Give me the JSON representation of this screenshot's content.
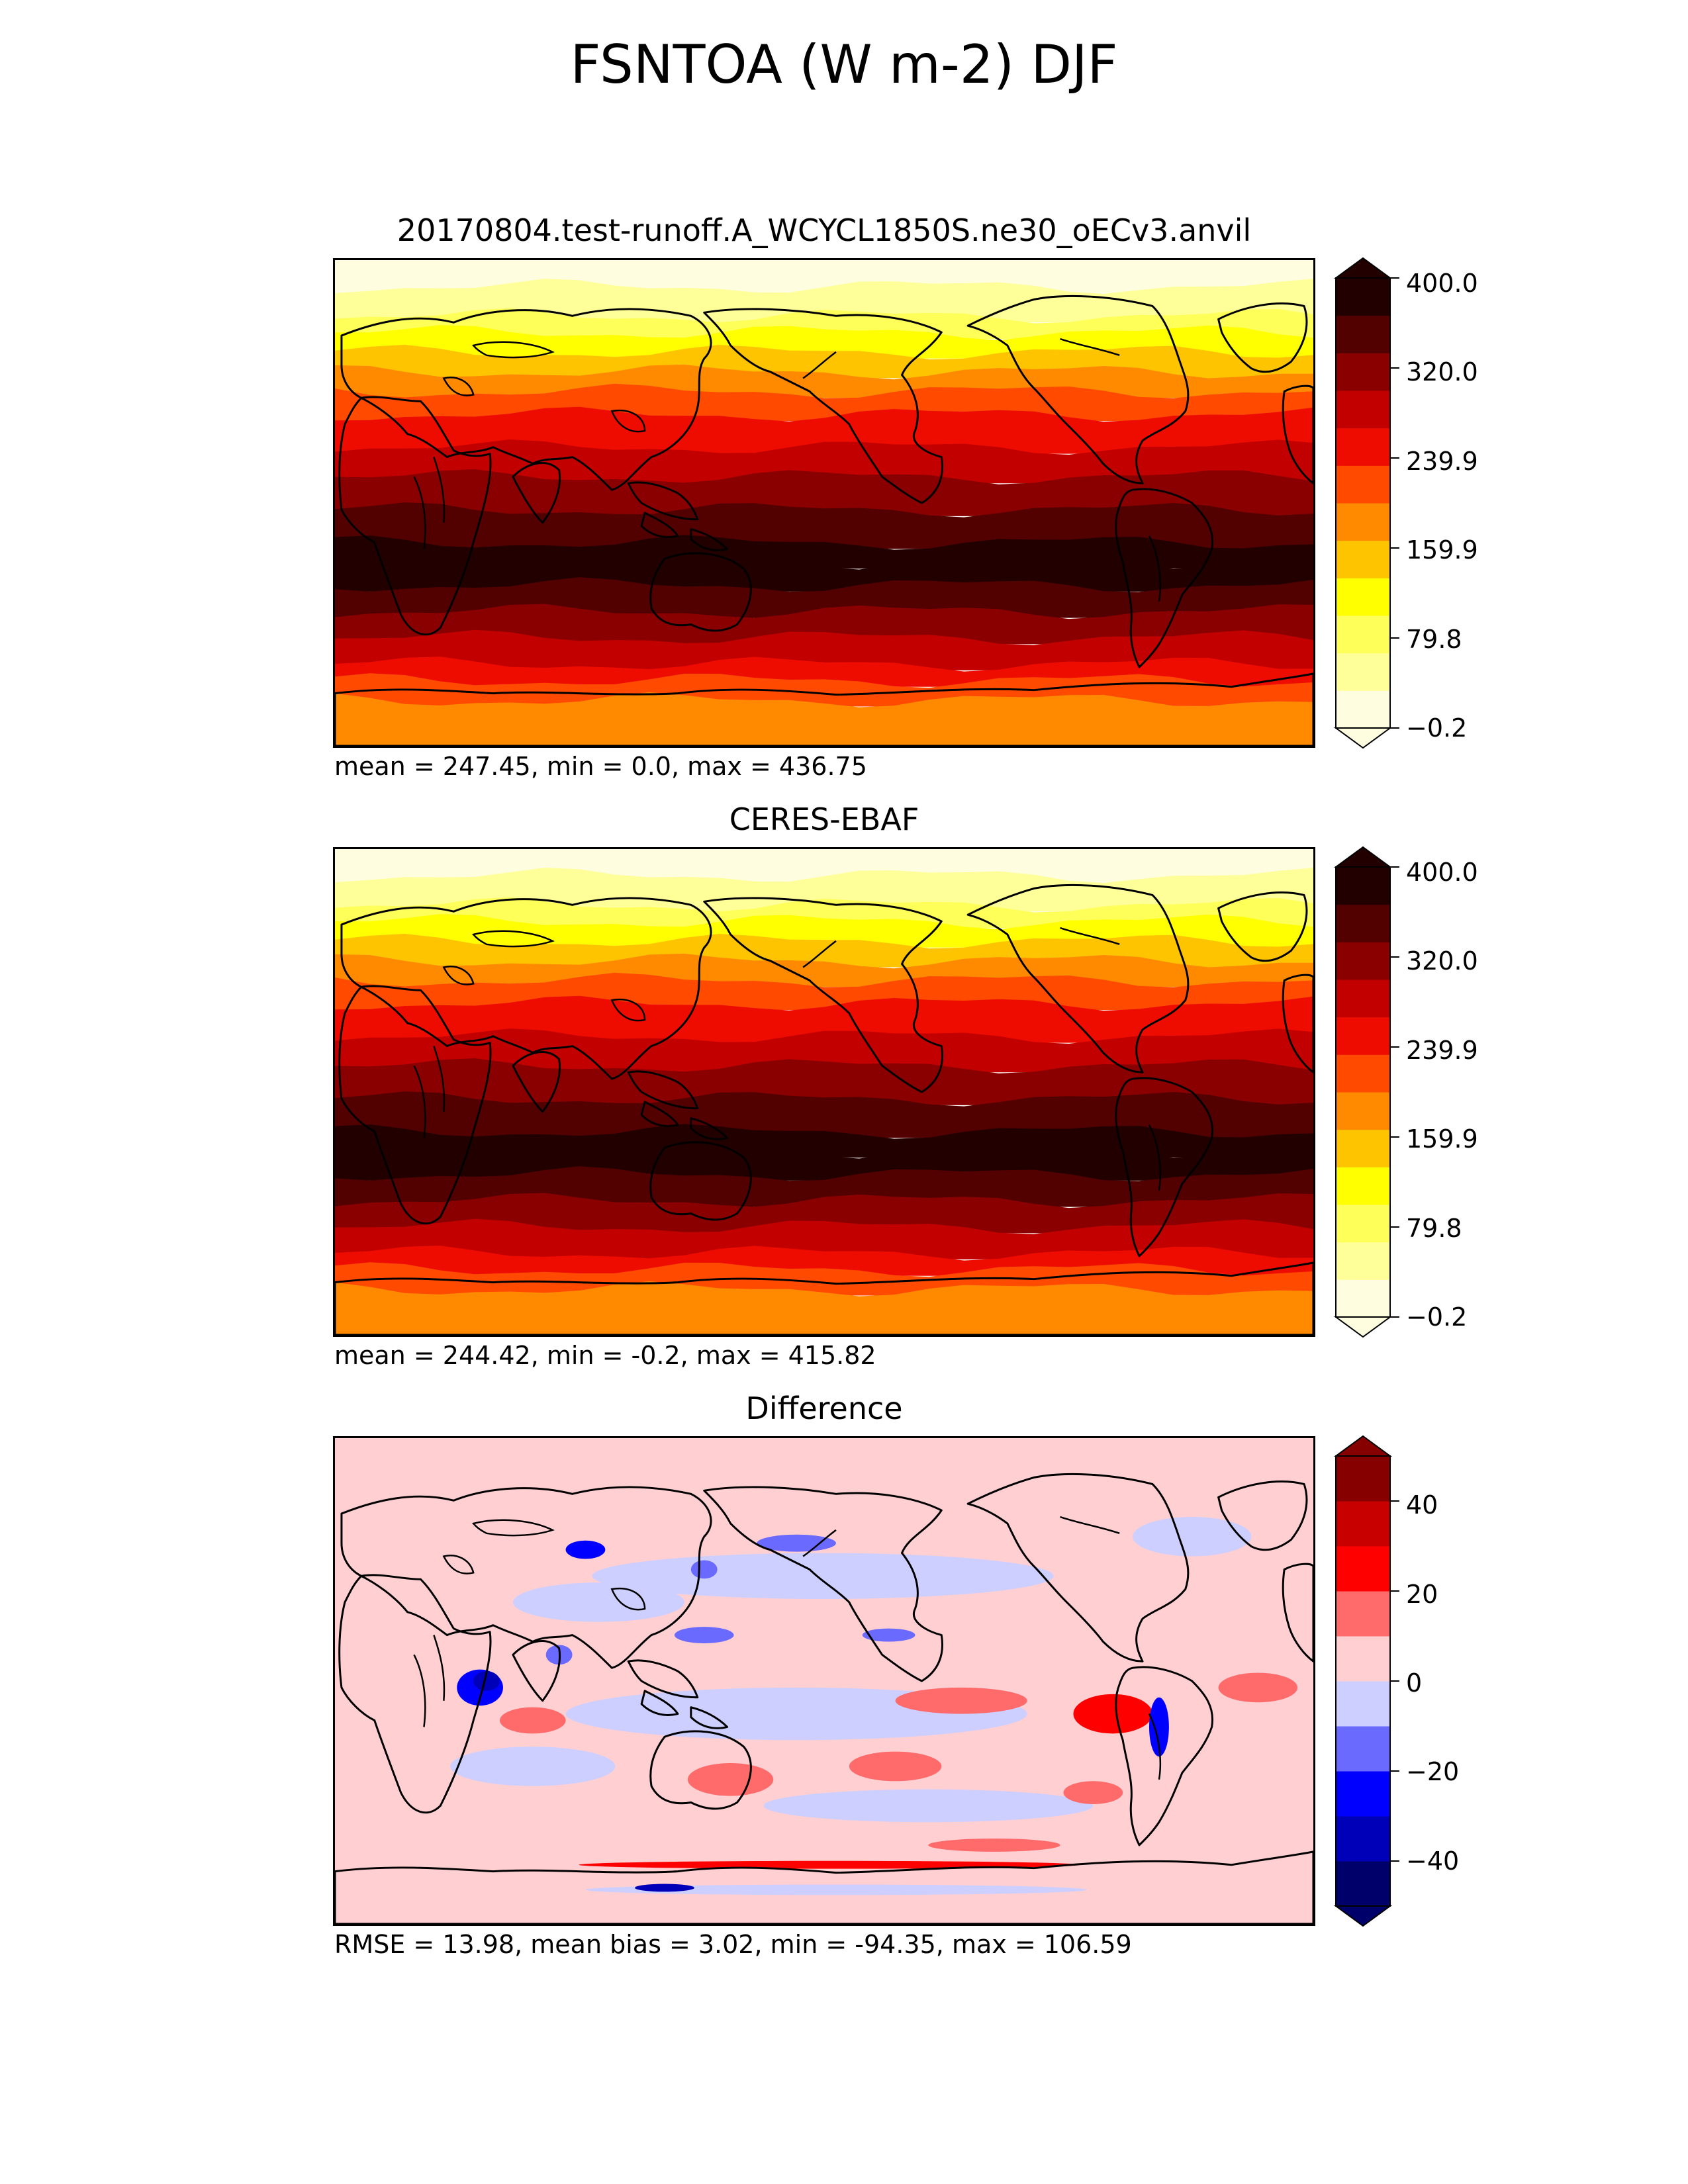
{
  "figure_title": "FSNTOA (W m-2) DJF",
  "panels": [
    {
      "title": "20170804.test-runoff.A_WCYCL1850S.ne30_oECv3.anvil",
      "stats": "mean = 247.45, min = 0.0, max = 436.75",
      "colormap": "hot_r",
      "colors": [
        "#fffde0",
        "#ffff9a",
        "#ffff5a",
        "#ffff00",
        "#ffc400",
        "#ff8a00",
        "#ff4a00",
        "#ee0c00",
        "#c20000",
        "#8a0000",
        "#520000",
        "#220000"
      ],
      "colorbar_ticks": [
        "400.0",
        "320.0",
        "239.9",
        "159.9",
        "79.8",
        "−0.2"
      ],
      "range": [
        -0.2,
        400.0
      ]
    },
    {
      "title": "CERES-EBAF",
      "stats": "mean = 244.42, min = -0.2, max = 415.82",
      "colormap": "hot_r",
      "colors": [
        "#fffde0",
        "#ffff9a",
        "#ffff5a",
        "#ffff00",
        "#ffc400",
        "#ff8a00",
        "#ff4a00",
        "#ee0c00",
        "#c20000",
        "#8a0000",
        "#520000",
        "#220000"
      ],
      "colorbar_ticks": [
        "400.0",
        "320.0",
        "239.9",
        "159.9",
        "79.8",
        "−0.2"
      ],
      "range": [
        -0.2,
        400.0
      ]
    },
    {
      "title": "Difference",
      "stats": "RMSE = 13.98, mean bias = 3.02, min = -94.35, max = 106.59",
      "colormap": "seismic",
      "colors": [
        "#00006a",
        "#0000b8",
        "#0000ff",
        "#6a6aff",
        "#cccfff",
        "#ffcfd2",
        "#ff6a6a",
        "#ff0000",
        "#c80000",
        "#860000"
      ],
      "colorbar_ticks": [
        "40",
        "20",
        "0",
        "−20",
        "−40"
      ],
      "range": [
        -50,
        50
      ]
    }
  ]
}
